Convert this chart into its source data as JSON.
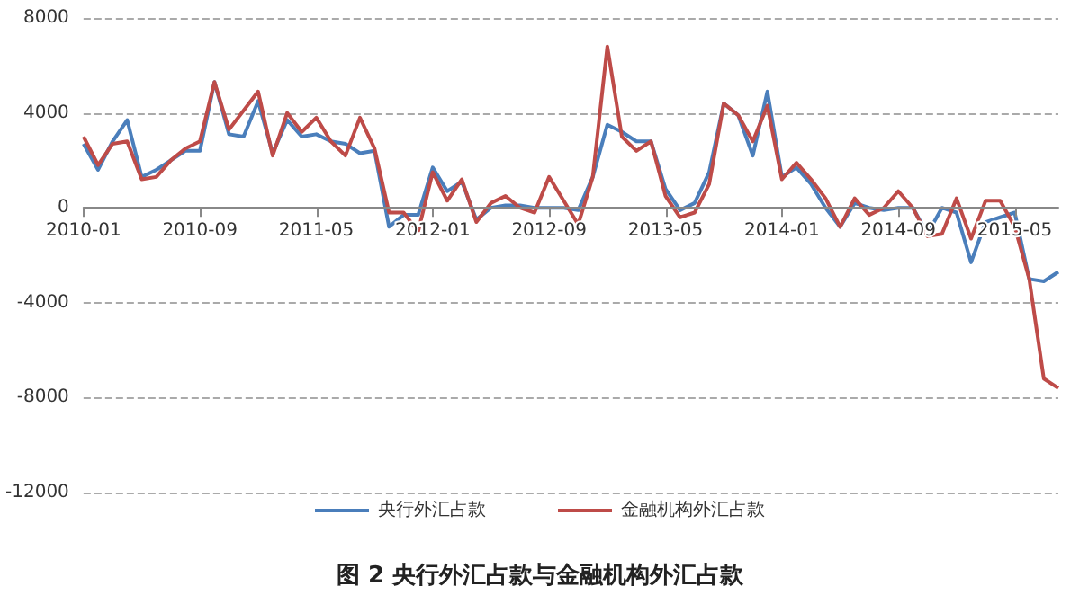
{
  "chart_data": {
    "type": "line",
    "title": "图 2 央行外汇占款与金融机构外汇占款",
    "categories": [
      "2010-01",
      null,
      null,
      null,
      null,
      null,
      null,
      null,
      "2010-09",
      null,
      null,
      null,
      null,
      null,
      null,
      null,
      "2011-05",
      null,
      null,
      null,
      null,
      null,
      null,
      null,
      "2012-01",
      null,
      null,
      null,
      null,
      null,
      null,
      null,
      "2012-09",
      null,
      null,
      null,
      null,
      null,
      null,
      null,
      "2013-05",
      null,
      null,
      null,
      null,
      null,
      null,
      null,
      "2014-01",
      null,
      null,
      null,
      null,
      null,
      null,
      null,
      "2014-09",
      null,
      null,
      null,
      null,
      null,
      null,
      null,
      "2015-05",
      null,
      null,
      null
    ],
    "series": [
      {
        "name": "央行外汇占款",
        "color": "#4a7ebb",
        "values": [
          2700,
          1600,
          2800,
          3700,
          1300,
          1600,
          2000,
          2400,
          2400,
          5300,
          3100,
          3000,
          4500,
          2300,
          3700,
          3000,
          3100,
          2800,
          2700,
          2300,
          2400,
          -800,
          -300,
          -300,
          1700,
          700,
          1100,
          -500,
          0,
          100,
          100,
          0,
          0,
          0,
          -100,
          1300,
          3500,
          3200,
          2800,
          2800,
          800,
          -100,
          200,
          1500,
          4400,
          3900,
          2200,
          4900,
          1300,
          1700,
          1000,
          0,
          -800,
          200,
          0,
          -100,
          0,
          0,
          -1100,
          0,
          -200,
          -2300,
          -600,
          -400,
          -200,
          -3000,
          -3100,
          -2700
        ]
      },
      {
        "name": "金融机构外汇占款",
        "color": "#be4b48",
        "values": [
          3000,
          1800,
          2700,
          2800,
          1200,
          1300,
          2000,
          2500,
          2800,
          5300,
          3300,
          4100,
          4900,
          2200,
          4000,
          3200,
          3800,
          2800,
          2200,
          3800,
          2500,
          -200,
          -200,
          -1000,
          1500,
          300,
          1200,
          -600,
          200,
          500,
          0,
          -200,
          1300,
          300,
          -700,
          1300,
          6800,
          3000,
          2400,
          2800,
          500,
          -400,
          -200,
          1000,
          4400,
          3900,
          2800,
          4300,
          1200,
          1900,
          1200,
          400,
          -800,
          400,
          -300,
          0,
          700,
          0,
          -1200,
          -1100,
          400,
          -1300,
          300,
          300,
          -800,
          -3000,
          -7200,
          -7600
        ]
      }
    ],
    "ylim": [
      -12000,
      8000
    ],
    "yticks": [
      -12000,
      -8000,
      -4000,
      0,
      4000,
      8000
    ],
    "grid": "y",
    "legend": "bottom",
    "marker": "none",
    "line_style": "solid"
  }
}
